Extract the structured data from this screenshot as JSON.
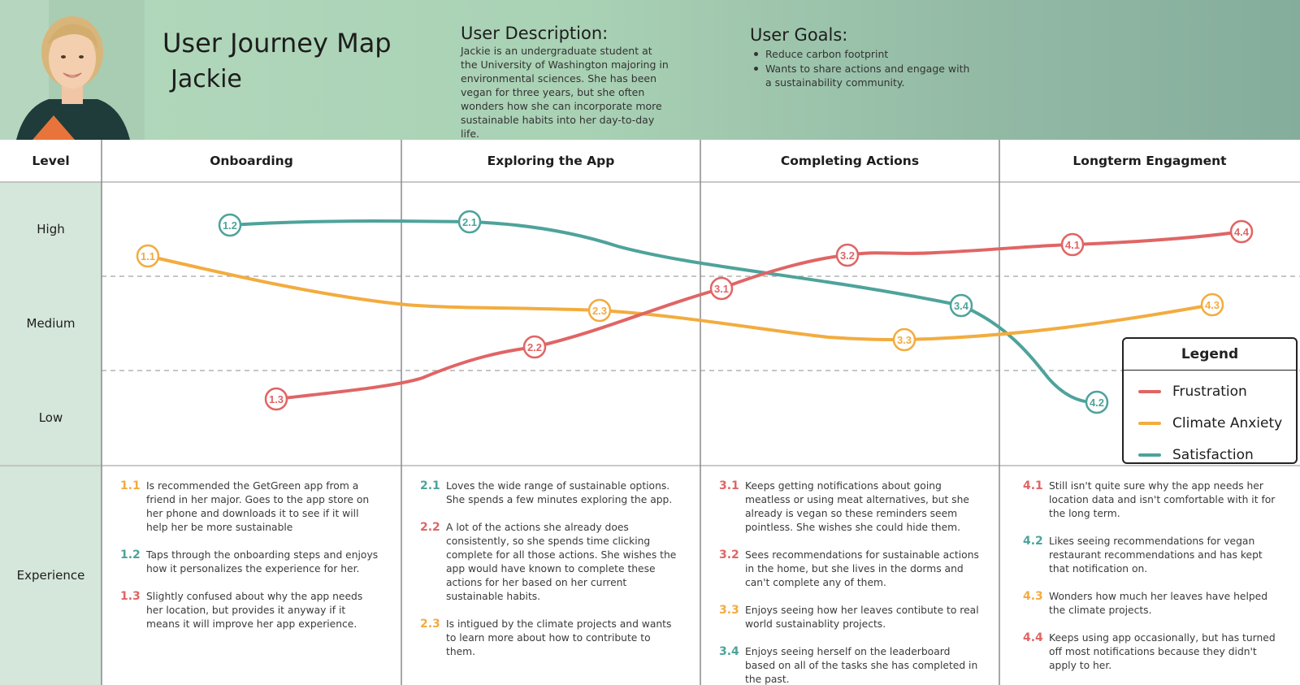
{
  "header": {
    "title": "User Journey Map",
    "persona_name": "Jackie",
    "description_heading": "User Description:",
    "description": "Jackie is an undergraduate student at the University of Washington majoring in environmental sciences. She has been vegan for three years, but she often wonders how she can incorporate more sustainable habits into her day-to-day life.",
    "goals_heading": "User Goals:",
    "goals": [
      "Reduce carbon footprint",
      "Wants to share actions and engage with a sustainability community."
    ]
  },
  "grid": {
    "level_header": "Level",
    "phases": [
      "Onboarding",
      "Exploring the App",
      "Completing Actions",
      "Longterm Engagment"
    ],
    "levels": [
      "High",
      "Medium",
      "Low"
    ],
    "experience_label": "Experience"
  },
  "colors": {
    "frustration": "#e06565",
    "climate_anxiety": "#f2ac3f",
    "satisfaction": "#4ea39b"
  },
  "legend": {
    "title": "Legend",
    "items": [
      {
        "label": "Frustration",
        "color": "#e06565"
      },
      {
        "label": "Climate Anxiety",
        "color": "#f2ac3f"
      },
      {
        "label": "Satisfaction",
        "color": "#4ea39b"
      }
    ]
  },
  "points": {
    "frustration": [
      "1.3",
      "2.2",
      "3.1",
      "3.2",
      "4.1",
      "4.4"
    ],
    "climate_anxiety": [
      "1.1",
      "2.3",
      "3.3",
      "4.3"
    ],
    "satisfaction": [
      "1.2",
      "2.1",
      "3.4",
      "4.2"
    ]
  },
  "experience": [
    [
      {
        "num": "1.1",
        "type": "climate_anxiety",
        "text": "Is recommended the GetGreen app from a friend in her major. Goes to the app store on her phone and downloads it to see if it will help her be more sustainable"
      },
      {
        "num": "1.2",
        "type": "satisfaction",
        "text": "Taps through the onboarding steps and enjoys how it personalizes the experience for her."
      },
      {
        "num": "1.3",
        "type": "frustration",
        "text": "Slightly confused about why the app needs her location, but provides it anyway if it means it will improve her app experience."
      }
    ],
    [
      {
        "num": "2.1",
        "type": "satisfaction",
        "text": "Loves the wide range of sustainable options. She spends a few minutes exploring the app."
      },
      {
        "num": "2.2",
        "type": "frustration",
        "text": "A lot of the actions she already does consistently, so she spends time clicking complete for all those actions. She wishes the app would have known to complete these actions for her based on her current sustainable habits."
      },
      {
        "num": "2.3",
        "type": "climate_anxiety",
        "text": "Is intigued by the climate projects and wants to learn more about how to contribute to them."
      }
    ],
    [
      {
        "num": "3.1",
        "type": "frustration",
        "text": "Keeps getting notifications about going meatless or using meat alternatives, but she already is vegan so these reminders seem pointless. She wishes she could hide them."
      },
      {
        "num": "3.2",
        "type": "frustration",
        "text": "Sees recommendations for sustainable actions in the home, but she lives in the dorms and can't complete any of them."
      },
      {
        "num": "3.3",
        "type": "climate_anxiety",
        "text": "Enjoys seeing how her leaves contibute to real world sustainablity projects."
      },
      {
        "num": "3.4",
        "type": "satisfaction",
        "text": "Enjoys seeing herself on the leaderboard based on all of the tasks she has completed in the past."
      }
    ],
    [
      {
        "num": "4.1",
        "type": "frustration",
        "text": "Still isn't quite sure why the app needs her location data and isn't comfortable with it for the long term."
      },
      {
        "num": "4.2",
        "type": "satisfaction",
        "text": "Likes seeing recommendations for vegan restaurant recommendations and has kept that notification on."
      },
      {
        "num": "4.3",
        "type": "climate_anxiety",
        "text": "Wonders how much her leaves have helped the climate projects."
      },
      {
        "num": "4.4",
        "type": "frustration",
        "text": "Keeps using app occasionally, but has turned off most notifications because they didn't apply to her."
      }
    ]
  ]
}
